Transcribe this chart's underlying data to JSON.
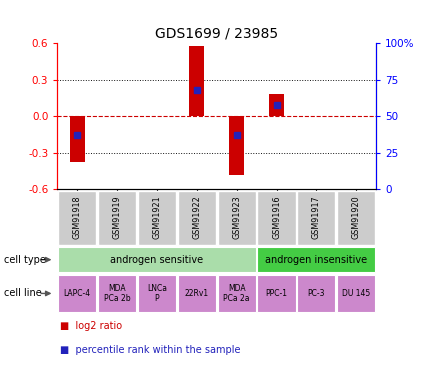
{
  "title": "GDS1699 / 23985",
  "samples": [
    "GSM91918",
    "GSM91919",
    "GSM91921",
    "GSM91922",
    "GSM91923",
    "GSM91916",
    "GSM91917",
    "GSM91920"
  ],
  "log2_ratio": [
    -0.375,
    0.0,
    0.0,
    0.575,
    -0.48,
    0.18,
    0.0,
    0.0
  ],
  "percentile_rank": [
    37,
    0,
    0,
    68,
    37,
    58,
    0,
    0
  ],
  "ylim": [
    -0.6,
    0.6
  ],
  "yticks_left": [
    -0.6,
    -0.3,
    0.0,
    0.3,
    0.6
  ],
  "yticks_right_pct": [
    0,
    25,
    50,
    75,
    100
  ],
  "bar_color": "#cc0000",
  "dot_color": "#2222bb",
  "zeroline_color": "#cc0000",
  "dotted_color": "#111111",
  "cell_type_groups": [
    {
      "label": "androgen sensitive",
      "start": 0,
      "end": 5,
      "color": "#aaddaa"
    },
    {
      "label": "androgen insensitive",
      "start": 5,
      "end": 8,
      "color": "#44cc44"
    }
  ],
  "cell_lines": [
    "LAPC-4",
    "MDA\nPCa 2b",
    "LNCa\nP",
    "22Rv1",
    "MDA\nPCa 2a",
    "PPC-1",
    "PC-3",
    "DU 145"
  ],
  "cell_line_color": "#cc88cc",
  "sample_box_color": "#cccccc",
  "legend_red": "log2 ratio",
  "legend_blue": "percentile rank within the sample",
  "label_cell_type": "cell type",
  "label_cell_line": "cell line",
  "arrow_color": "#555555"
}
